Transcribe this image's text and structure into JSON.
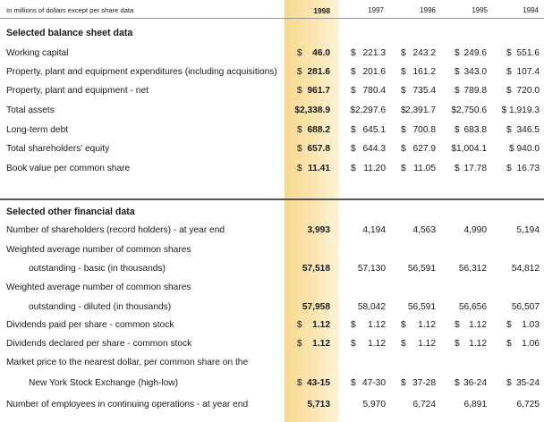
{
  "header": {
    "caption": "In millions of dollars except per share data",
    "years": [
      "1998",
      "1997",
      "1996",
      "1995",
      "1994"
    ]
  },
  "balance": {
    "title": "Selected balance sheet data",
    "rows": [
      {
        "label": "Working capital",
        "cur": [
          "$",
          "$",
          "$",
          "$",
          "$"
        ],
        "vals": [
          "46.0",
          "221.3",
          "243.2",
          "249.6",
          "551.6"
        ]
      },
      {
        "label": "Property, plant and equipment expenditures (including acquisitions)",
        "cur": [
          "$",
          "$",
          "$",
          "$",
          "$"
        ],
        "vals": [
          "281.6",
          "201.6",
          "161.2",
          "343.0",
          "107.4"
        ]
      },
      {
        "label": "Property, plant and equipment - net",
        "cur": [
          "$",
          "$",
          "$",
          "$",
          "$"
        ],
        "vals": [
          "961.7",
          "780.4",
          "735.4",
          "789.8",
          "720.0"
        ]
      },
      {
        "label": "Total assets",
        "cur": [
          "",
          "",
          "$",
          "",
          ""
        ],
        "vals": [
          "$2,338.9",
          "$2,297.6",
          "2,391.7",
          "$2,750.6",
          "$ 1,919.3"
        ]
      },
      {
        "label": "Long-term debt",
        "cur": [
          "$",
          "$",
          "$",
          "$",
          "$"
        ],
        "vals": [
          "688.2",
          "645.1",
          "700.8",
          "683.8",
          "346.5"
        ]
      },
      {
        "label": "Total shareholders' equity",
        "cur": [
          "$",
          "$",
          "$",
          "",
          ""
        ],
        "vals": [
          "657.8",
          "644.3",
          "627.9",
          "$1,004.1",
          "$ 940.0"
        ]
      },
      {
        "label": "Book value per common share",
        "cur": [
          "$",
          "$",
          "$",
          "$",
          "$"
        ],
        "vals": [
          "11.41",
          "11.20",
          "11.05",
          "17.78",
          "16.73"
        ]
      }
    ]
  },
  "other": {
    "title": "Selected other financial data",
    "rows": [
      {
        "label": "Number of shareholders (record holders) - at year end",
        "cur": [
          "",
          "",
          "",
          "",
          ""
        ],
        "vals": [
          "3,993",
          "4,194",
          "4,563",
          "4,990",
          "5,194"
        ]
      },
      {
        "label": "Weighted average number of common shares",
        "cur": null,
        "vals": null
      },
      {
        "label": "outstanding - basic (in thousands)",
        "indent": true,
        "cur": [
          "",
          "",
          "",
          "",
          ""
        ],
        "vals": [
          "57,518",
          "57,130",
          "56,591",
          "56,312",
          "54,812"
        ]
      },
      {
        "label": "Weighted average number of common shares",
        "cur": null,
        "vals": null
      },
      {
        "label": "outstanding - diluted (in thousands)",
        "indent": true,
        "cur": [
          "",
          "",
          "",
          "",
          ""
        ],
        "vals": [
          "57,958",
          "58,042",
          "56,591",
          "56,656",
          "56,507"
        ]
      },
      {
        "label": "Dividends paid per share - common stock",
        "cur": [
          "$",
          "$",
          "$",
          "$",
          "$"
        ],
        "vals": [
          "1.12",
          "1.12",
          "1.12",
          "1.12",
          "1.03"
        ]
      },
      {
        "label": "Dividends declared per share - common stock",
        "cur": [
          "$",
          "$",
          "$",
          "$",
          "$"
        ],
        "vals": [
          "1.12",
          "1.12",
          "1.12",
          "1.12",
          "1.06"
        ]
      },
      {
        "label": "Market price to the nearest dollar, per common share on the",
        "cur": null,
        "vals": null
      },
      {
        "label": "New York Stock Exchange (high-low)",
        "indent": true,
        "cur": [
          "$",
          "$",
          "$",
          "$",
          "$"
        ],
        "vals": [
          "43-15",
          "47-30",
          "37-28",
          "36-24",
          "35-24"
        ]
      },
      {
        "label": "Number of employees in continuing operations - at year end",
        "cur": [
          "",
          "",
          "",
          "",
          ""
        ],
        "vals": [
          "5,713",
          "5,970",
          "6,724",
          "6,891",
          "6,725"
        ]
      }
    ]
  }
}
